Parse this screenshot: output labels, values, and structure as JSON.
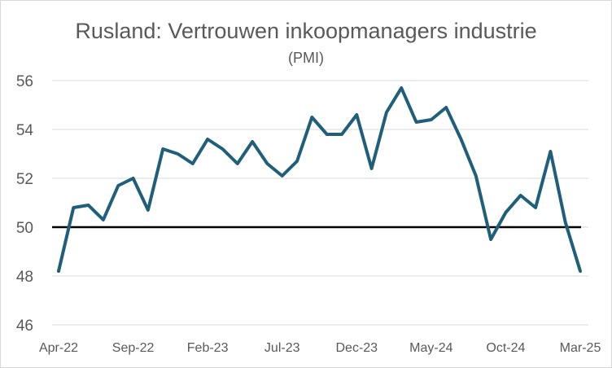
{
  "chart_data": {
    "type": "line",
    "title": "Rusland: Vertrouwen inkoopmanagers industrie",
    "subtitle": "(PMI)",
    "xlabel": "",
    "ylabel": "",
    "ylim": [
      46,
      56
    ],
    "yticks": [
      "46",
      "48",
      "50",
      "52",
      "54",
      "56"
    ],
    "xtick_labels": [
      "Apr-22",
      "Sep-22",
      "Feb-23",
      "Jul-23",
      "Dec-23",
      "May-24",
      "Oct-24",
      "Mar-25"
    ],
    "grid": true,
    "reference_line": 50,
    "line_color": "#1f5f7a",
    "reference_color": "#000000",
    "series": [
      {
        "values": [
          48.2,
          50.8,
          50.9,
          50.3,
          51.7,
          52.0,
          50.7,
          53.2,
          53.0,
          52.6,
          53.6,
          53.2,
          52.6,
          53.5,
          52.6,
          52.1,
          52.7,
          54.5,
          53.8,
          53.8,
          54.6,
          52.4,
          54.7,
          55.7,
          54.3,
          54.4,
          54.9,
          53.6,
          52.1,
          49.5,
          50.6,
          51.3,
          50.8,
          53.1,
          50.2,
          48.2
        ]
      }
    ]
  }
}
